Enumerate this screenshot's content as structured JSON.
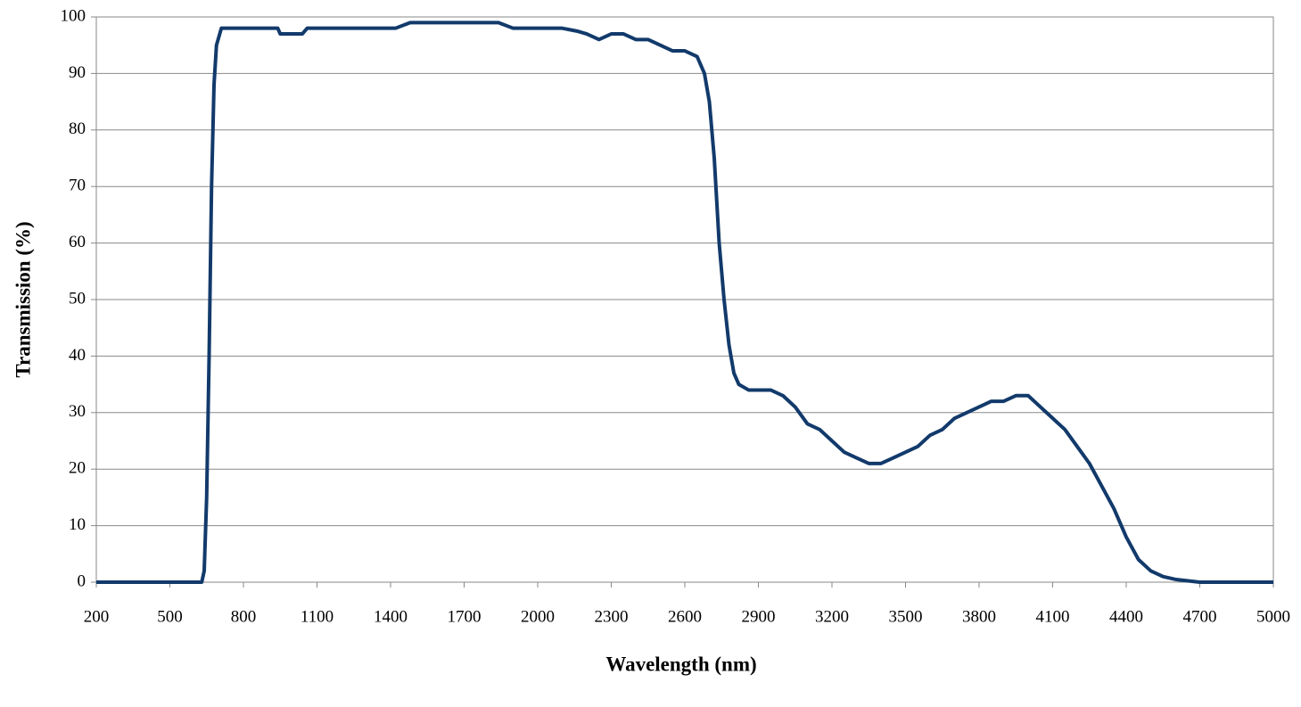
{
  "chart_data": {
    "type": "line",
    "x_label": "Wavelength (nm)",
    "y_label": "Transmission (%)",
    "x": [
      200,
      500,
      630,
      640,
      650,
      660,
      670,
      680,
      690,
      710,
      800,
      900,
      940,
      950,
      1000,
      1040,
      1060,
      1200,
      1380,
      1420,
      1480,
      1600,
      1800,
      1840,
      1900,
      1950,
      2000,
      2100,
      2160,
      2200,
      2250,
      2300,
      2350,
      2400,
      2450,
      2500,
      2550,
      2600,
      2650,
      2680,
      2700,
      2720,
      2740,
      2760,
      2780,
      2800,
      2820,
      2860,
      2900,
      2950,
      3000,
      3050,
      3100,
      3150,
      3200,
      3250,
      3300,
      3350,
      3400,
      3450,
      3500,
      3550,
      3600,
      3650,
      3700,
      3750,
      3800,
      3850,
      3900,
      3950,
      4000,
      4050,
      4100,
      4150,
      4200,
      4250,
      4300,
      4350,
      4400,
      4450,
      4500,
      4550,
      4600,
      4700,
      5000
    ],
    "series": [
      {
        "color": "#123a6b",
        "values": [
          0,
          0,
          0,
          2,
          15,
          40,
          70,
          88,
          95,
          98,
          98,
          98,
          98,
          97,
          97,
          97,
          98,
          98,
          98,
          98,
          99,
          99,
          99,
          99,
          98,
          98,
          98,
          98,
          97.5,
          97,
          96,
          97,
          97,
          96,
          96,
          95,
          94,
          94,
          93,
          90,
          85,
          75,
          60,
          50,
          42,
          37,
          35,
          34,
          34,
          34,
          33,
          31,
          28,
          27,
          25,
          23,
          22,
          21,
          21,
          22,
          23,
          24,
          26,
          27,
          29,
          30,
          31,
          32,
          32,
          33,
          33,
          31,
          29,
          27,
          24,
          21,
          17,
          13,
          8,
          4,
          2,
          1,
          0.5,
          0,
          0
        ]
      }
    ],
    "xlim": [
      200,
      5000
    ],
    "xticks": [
      200,
      500,
      800,
      1100,
      1400,
      1700,
      2000,
      2300,
      2600,
      2900,
      3200,
      3500,
      3800,
      4100,
      4400,
      4700,
      5000
    ],
    "ylim": [
      0,
      100
    ],
    "yticks": [
      0,
      10,
      20,
      30,
      40,
      50,
      60,
      70,
      80,
      90,
      100
    ],
    "grid": true
  }
}
